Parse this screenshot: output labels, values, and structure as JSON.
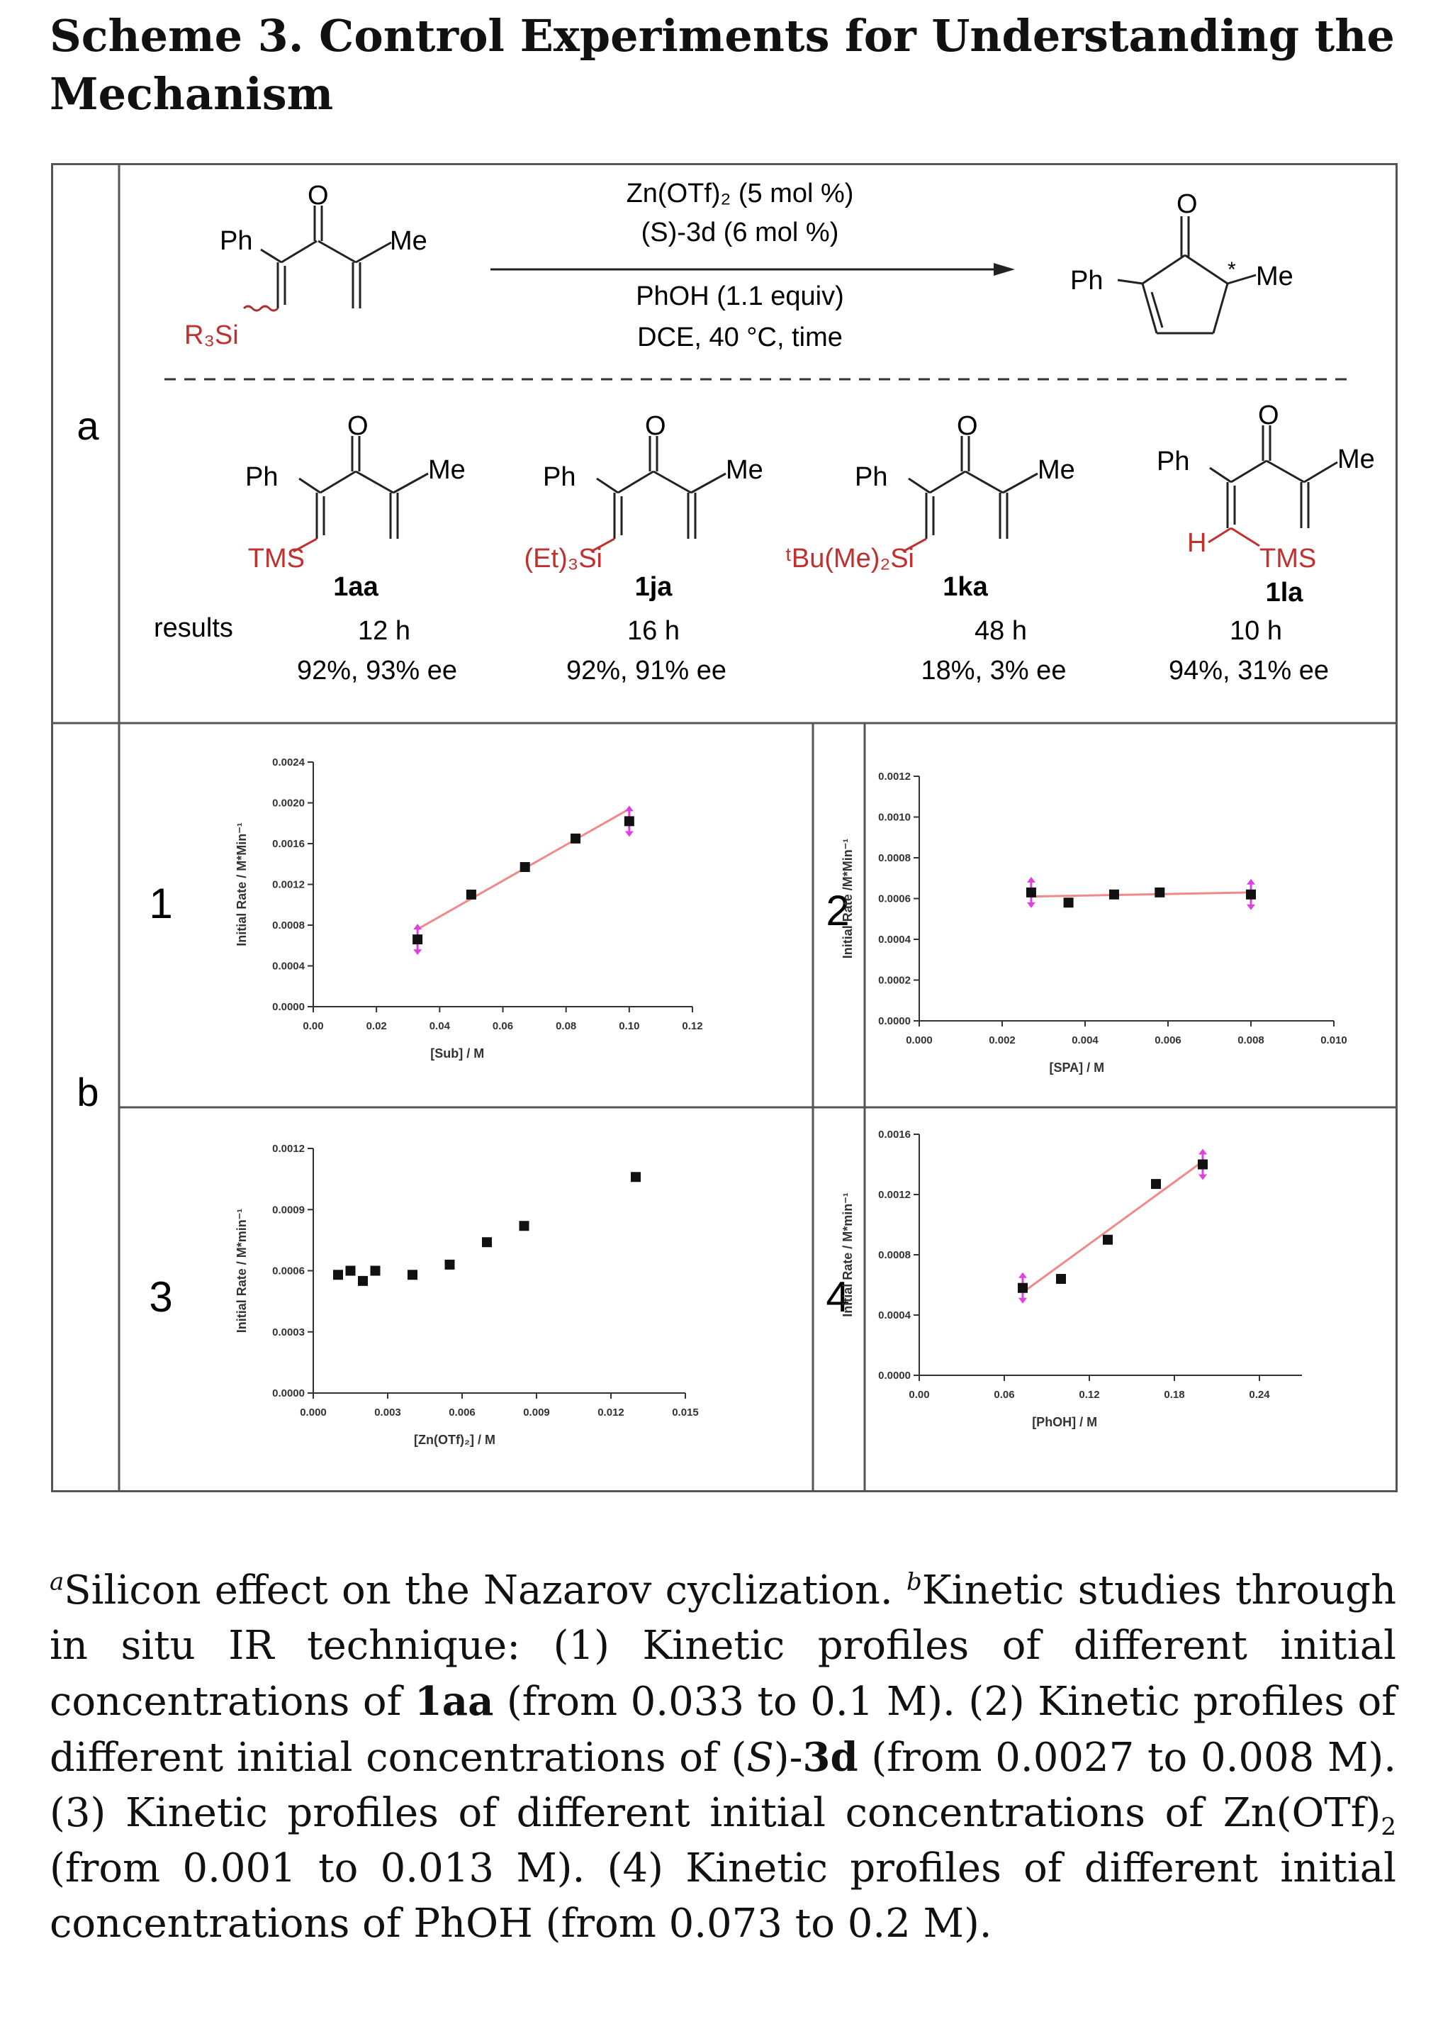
{
  "title": "Scheme 3. Control Experiments for Understanding the Mechanism",
  "panel_a": {
    "label": "a",
    "reaction": {
      "reactant_Ph": "Ph",
      "reactant_Me": "Me",
      "reactant_O": "O",
      "reactant_R3Si": "R₃Si",
      "conditions_above_1": "Zn(OTf)₂ (5 mol %)",
      "conditions_above_2": "(S)-3d (6 mol %)",
      "conditions_below_1": "PhOH (1.1 equiv)",
      "conditions_below_2": "DCE, 40 °C, time",
      "product_Ph": "Ph",
      "product_Me": "Me",
      "product_O": "O",
      "product_star": "*"
    },
    "substrates": [
      {
        "silyl": "TMS",
        "label": "1aa",
        "time": "12 h",
        "result": "92%, 93% ee"
      },
      {
        "silyl": "(Et)₃Si",
        "label": "1ja",
        "time": "16 h",
        "result": "92%, 91% ee"
      },
      {
        "silyl": "ᵗBu(Me)₂Si",
        "label": "1ka",
        "time": "48 h",
        "result": "18%, 3% ee"
      },
      {
        "silyl": "TMS",
        "label": "1la",
        "time": "10 h",
        "result": "94%, 31% ee",
        "H": "H"
      }
    ],
    "results_label": "results",
    "atom_Ph": "Ph",
    "atom_Me": "Me",
    "atom_O": "O"
  },
  "panel_b": {
    "label": "b",
    "plots": [
      {
        "number": "1",
        "xlabel": "[Sub] / M",
        "ylabel": "Initial Rate / M*Min⁻¹"
      },
      {
        "number": "2",
        "xlabel": "[SPA] / M",
        "ylabel": "Initial Rate /M*Min⁻¹"
      },
      {
        "number": "3",
        "xlabel": "[Zn(OTf)₂] / M",
        "ylabel": "Initial Rate / M*min⁻¹"
      },
      {
        "number": "4",
        "xlabel": "[PhOH] / M",
        "ylabel": "Initial Rate / M*min⁻¹"
      }
    ]
  },
  "chart_data": [
    {
      "type": "scatter",
      "xlabel": "[Sub] / M",
      "ylabel": "Initial Rate / M*Min⁻¹",
      "xlim": [
        0,
        0.12
      ],
      "ylim": [
        0,
        0.0024
      ],
      "xticks": [
        "0.00",
        "0.02",
        "0.04",
        "0.06",
        "0.08",
        "0.10",
        "0.12"
      ],
      "yticks": [
        "0.0000",
        "0.0004",
        "0.0008",
        "0.0012",
        "0.0016",
        "0.0020",
        "0.0024"
      ],
      "x": [
        0.033,
        0.05,
        0.067,
        0.083,
        0.1
      ],
      "y": [
        0.00066,
        0.0011,
        0.00137,
        0.00165,
        0.00182
      ],
      "fit": [
        [
          0.033,
          0.00076
        ],
        [
          0.1,
          0.00194
        ]
      ]
    },
    {
      "type": "scatter",
      "xlabel": "[SPA] / M",
      "ylabel": "Initial Rate /M*Min⁻¹",
      "xlim": [
        0,
        0.01
      ],
      "ylim": [
        0,
        0.0012
      ],
      "xticks": [
        "0.000",
        "0.002",
        "0.004",
        "0.006",
        "0.008",
        "0.010"
      ],
      "yticks": [
        "0.0000",
        "0.0002",
        "0.0004",
        "0.0006",
        "0.0008",
        "0.0010",
        "0.0012"
      ],
      "x": [
        0.0027,
        0.0036,
        0.0047,
        0.0058,
        0.008
      ],
      "y": [
        0.00063,
        0.00058,
        0.00062,
        0.00063,
        0.00062
      ],
      "fit": [
        [
          0.0027,
          0.00061
        ],
        [
          0.008,
          0.00063
        ]
      ]
    },
    {
      "type": "scatter",
      "xlabel": "[Zn(OTf)₂] / M",
      "ylabel": "Initial Rate / M*min⁻¹",
      "xlim": [
        0,
        0.015
      ],
      "ylim": [
        0,
        0.0012
      ],
      "xticks": [
        "0.000",
        "0.003",
        "0.006",
        "0.009",
        "0.012",
        "0.015"
      ],
      "yticks": [
        "0.0000",
        "0.0003",
        "0.0006",
        "0.0009",
        "0.0012"
      ],
      "x": [
        0.001,
        0.0015,
        0.002,
        0.0025,
        0.004,
        0.0055,
        0.007,
        0.0085,
        0.013
      ],
      "y": [
        0.00058,
        0.0006,
        0.00055,
        0.0006,
        0.00058,
        0.00063,
        0.00074,
        0.00082,
        0.00106
      ]
    },
    {
      "type": "scatter",
      "xlabel": "[PhOH] / M",
      "ylabel": "Initial Rate / M*min⁻¹",
      "xlim": [
        0,
        0.27
      ],
      "ylim": [
        0,
        0.0016
      ],
      "xticks": [
        "0.00",
        "0.06",
        "0.12",
        "0.18",
        "0.24"
      ],
      "yticks": [
        "0.0000",
        "0.0004",
        "0.0008",
        "0.0012",
        "0.0016"
      ],
      "x": [
        0.073,
        0.1,
        0.133,
        0.167,
        0.2
      ],
      "y": [
        0.00058,
        0.00064,
        0.0009,
        0.00127,
        0.0014
      ],
      "fit": [
        [
          0.073,
          0.00055
        ],
        [
          0.2,
          0.00142
        ]
      ]
    }
  ],
  "caption": {
    "a_mark": "a",
    "a_text": "Silicon effect on the Nazarov cyclization. ",
    "b_mark": "b",
    "b_text_1": "Kinetic studies through in situ IR technique: (1) Kinetic profiles of different initial concentrations of ",
    "b_bold_1": "1aa",
    "b_text_2": " (from 0.033 to 0.1 M). (2) Kinetic profiles of different initial concentrations of (",
    "b_italic_S": "S",
    "b_text_3": ")-",
    "b_bold_2": "3d",
    "b_text_4": " (from 0.0027 to 0.008 M). (3) Kinetic profiles of different initial concentrations of Zn(OTf)",
    "b_sub_2": "2",
    "b_text_5": " (from 0.001 to 0.013 M). (4) Kinetic profiles of different initial concentrations of PhOH (from 0.073 to 0.2 M)."
  }
}
